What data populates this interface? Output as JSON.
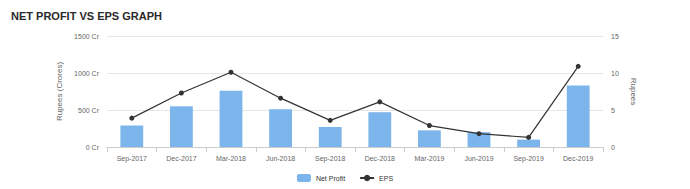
{
  "chart_data": {
    "type": "bar",
    "title": "NET PROFIT VS EPS GRAPH",
    "y_label": "Rupees (Crores)",
    "y2_label": "Rupees",
    "categories": [
      "Sep-2017",
      "Dec-2017",
      "Mar-2018",
      "Jun-2018",
      "Sep-2018",
      "Dec-2018",
      "Mar-2019",
      "Jun-2019",
      "Sep-2019",
      "Dec-2019"
    ],
    "series": [
      {
        "name": "Net Profit",
        "type": "bar",
        "color": "#7cb5ec",
        "values": [
          290,
          550,
          760,
          510,
          270,
          470,
          225,
          200,
          100,
          830
        ]
      },
      {
        "name": "EPS",
        "type": "line",
        "axis": "y2",
        "color": "#333333",
        "marker": "circle",
        "values": [
          3.9,
          7.3,
          10.1,
          6.6,
          3.6,
          6.1,
          2.9,
          1.8,
          1.3,
          10.9
        ]
      }
    ],
    "ylim": [
      0,
      1500
    ],
    "yticks": [
      {
        "value": 0,
        "label": "0 Cr"
      },
      {
        "value": 500,
        "label": "500 Cr"
      },
      {
        "value": 1000,
        "label": "1000 Cr"
      },
      {
        "value": 1500,
        "label": "1500 Cr"
      }
    ],
    "y2lim": [
      0,
      15
    ],
    "y2ticks": [
      0,
      5,
      10,
      15
    ],
    "grid": true,
    "legend": "bottom"
  }
}
